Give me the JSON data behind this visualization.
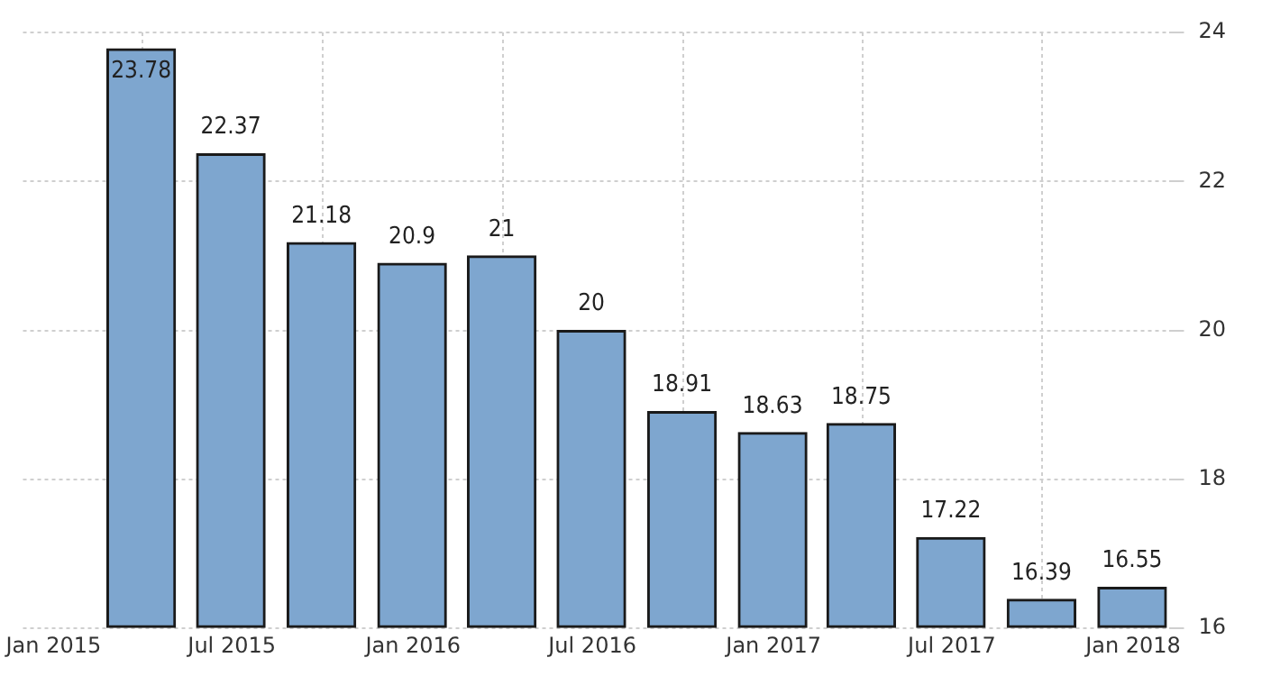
{
  "chart_data": {
    "type": "bar",
    "x": [
      "2015-03-31",
      "2015-06-30",
      "2015-09-30",
      "2015-12-31",
      "2016-03-31",
      "2016-06-30",
      "2016-09-30",
      "2016-12-31",
      "2017-03-31",
      "2017-06-30",
      "2017-09-30",
      "2017-12-31"
    ],
    "values": [
      23.78,
      22.37,
      21.18,
      20.9,
      21,
      20,
      18.91,
      18.63,
      18.75,
      17.22,
      16.39,
      16.55
    ],
    "color": "#7ea6cf",
    "xlim": [
      "2014-12-01",
      "2018-02-07"
    ],
    "xticks": [
      {
        "value": "2015-01-01",
        "label": "Jan 2015"
      },
      {
        "value": "2015-07-01",
        "label": "Jul 2015"
      },
      {
        "value": "2016-01-01",
        "label": "Jan 2016"
      },
      {
        "value": "2016-07-01",
        "label": "Jul 2016"
      },
      {
        "value": "2017-01-01",
        "label": "Jan 2017"
      },
      {
        "value": "2017-07-01",
        "label": "Jul 2017"
      },
      {
        "value": "2018-01-01",
        "label": "Jan 2018"
      }
    ],
    "ylim": [
      16,
      24
    ],
    "yticks": [
      16,
      18,
      20,
      22,
      24
    ],
    "grid": true,
    "data_labels": true
  }
}
